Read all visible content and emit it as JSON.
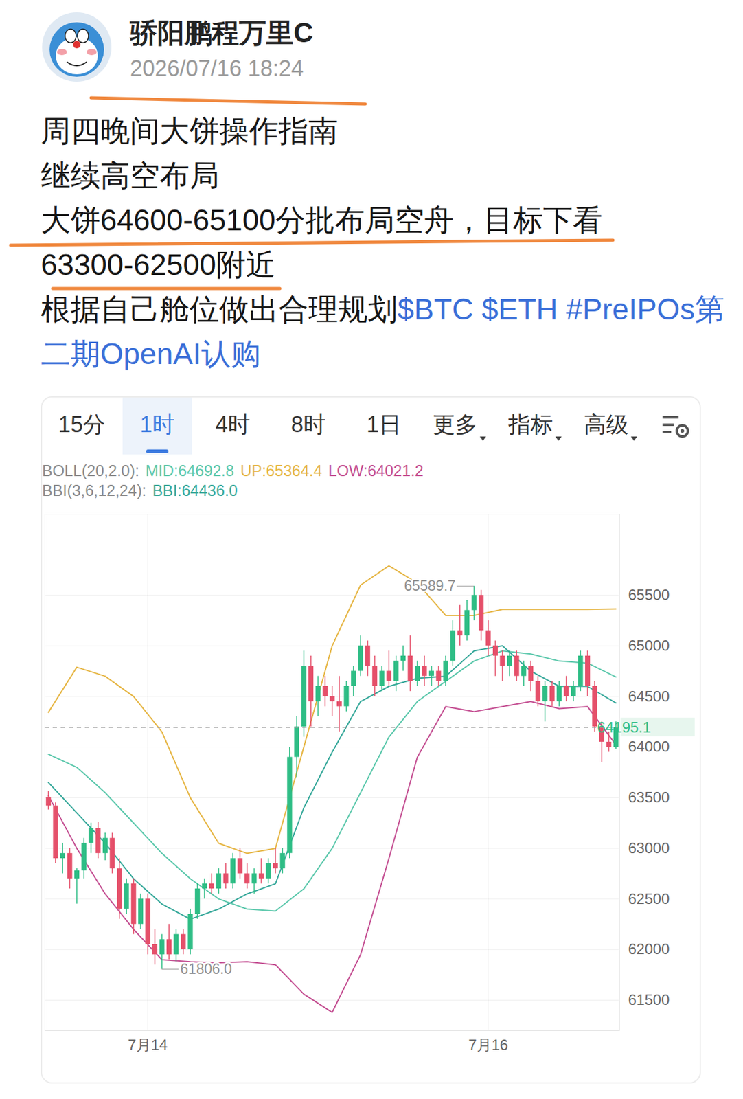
{
  "post": {
    "author": "骄阳鹏程万里C",
    "time": "2026/07/16 18:24",
    "body_lines": [
      "周四晚间大饼操作指南",
      "继续高空布局",
      "大饼64600-65100分批布局空舟，目标下看",
      "63300-62500附近"
    ],
    "body_last": {
      "text": "根据自己舱位做出合理规划",
      "tags": "$BTC $ETH #PreIPOs第二期OpenAI认购"
    }
  },
  "toolbar": {
    "tabs": [
      "15分",
      "1时",
      "4时",
      "8时",
      "1日",
      "更多",
      "指标",
      "高级"
    ],
    "selected": "1时"
  },
  "chart_data": {
    "type": "candlestick",
    "categories": [
      null,
      null,
      null,
      null,
      null,
      null,
      null,
      null,
      null,
      null,
      null,
      null,
      null,
      null,
      "7月14",
      null,
      null,
      null,
      null,
      null,
      null,
      null,
      null,
      null,
      null,
      null,
      null,
      null,
      null,
      null,
      null,
      null,
      null,
      null,
      null,
      null,
      null,
      null,
      null,
      null,
      null,
      null,
      null,
      null,
      null,
      null,
      null,
      null,
      null,
      null,
      null,
      null,
      null,
      null,
      null,
      null,
      null,
      null,
      null,
      null,
      null,
      null,
      "7月16",
      null,
      null,
      null,
      null,
      null,
      null,
      null,
      null,
      null,
      null,
      null,
      null,
      null,
      null,
      null,
      null,
      null,
      null
    ],
    "open": [
      63500,
      63420,
      62900,
      62950,
      62700,
      62780,
      63050,
      63200,
      62950,
      63100,
      62800,
      62400,
      62650,
      62250,
      62500,
      62050,
      61950,
      62100,
      61950,
      62150,
      62000,
      62350,
      62600,
      62650,
      62600,
      62750,
      62650,
      62900,
      62750,
      62650,
      62750,
      62700,
      62850,
      62800,
      62950,
      63900,
      64200,
      64800,
      64450,
      64600,
      64500,
      64450,
      64400,
      64600,
      64750,
      65000,
      64800,
      64600,
      64750,
      64650,
      64850,
      64900,
      64650,
      64800,
      64700,
      64750,
      64650,
      64850,
      65150,
      65100,
      65350,
      65500,
      65150,
      65000,
      64900,
      64800,
      64900,
      64700,
      64800,
      64650,
      64450,
      64600,
      64450,
      64600,
      64500,
      64600,
      64900,
      64600,
      64200,
      64050,
      64000
    ],
    "high": [
      63560,
      63450,
      63050,
      63000,
      62800,
      63100,
      63250,
      63260,
      63150,
      63150,
      62900,
      62700,
      62700,
      62550,
      62550,
      62200,
      62150,
      62250,
      62200,
      62200,
      62400,
      62650,
      62700,
      62750,
      62800,
      62850,
      62950,
      63000,
      62850,
      62800,
      62900,
      62900,
      63000,
      63000,
      64000,
      64300,
      64950,
      64900,
      64700,
      64700,
      64600,
      64700,
      64650,
      64800,
      65100,
      65050,
      64900,
      64800,
      64950,
      64900,
      65000,
      65100,
      64850,
      64900,
      64800,
      64800,
      64900,
      65250,
      65400,
      65450,
      65589.7,
      65550,
      65250,
      65050,
      64950,
      64950,
      64950,
      64850,
      64850,
      64700,
      64650,
      64650,
      64650,
      64700,
      64650,
      64950,
      64950,
      64650,
      64250,
      64150,
      64250
    ],
    "low": [
      63380,
      62850,
      62750,
      62600,
      62450,
      62700,
      62950,
      62900,
      62880,
      62750,
      62300,
      62350,
      62150,
      62200,
      61950,
      61850,
      61806,
      61900,
      61880,
      61950,
      61950,
      62300,
      62500,
      62550,
      62550,
      62600,
      62600,
      62700,
      62600,
      62550,
      62650,
      62650,
      62750,
      62750,
      62900,
      63700,
      64100,
      64200,
      64300,
      64400,
      64300,
      64150,
      64350,
      64500,
      64700,
      64700,
      64500,
      64550,
      64600,
      64550,
      64750,
      64550,
      64600,
      64600,
      64600,
      64600,
      64600,
      64800,
      65000,
      65050,
      65250,
      65050,
      64900,
      64700,
      64650,
      64700,
      64650,
      64600,
      64550,
      64400,
      64250,
      64400,
      64400,
      64450,
      64450,
      64550,
      64500,
      64150,
      63850,
      63950,
      63980
    ],
    "close": [
      63420,
      62900,
      62950,
      62700,
      62780,
      63050,
      63200,
      62950,
      63100,
      62800,
      62400,
      62650,
      62250,
      62500,
      62050,
      61950,
      62100,
      61950,
      62150,
      62000,
      62350,
      62600,
      62650,
      62600,
      62750,
      62650,
      62900,
      62750,
      62650,
      62750,
      62700,
      62850,
      62800,
      62950,
      63900,
      64200,
      64800,
      64450,
      64600,
      64500,
      64450,
      64400,
      64600,
      64750,
      65000,
      64800,
      64600,
      64750,
      64650,
      64850,
      64900,
      64650,
      64800,
      64700,
      64750,
      64650,
      64850,
      65150,
      65100,
      65350,
      65500,
      65150,
      65000,
      64900,
      64800,
      64900,
      64700,
      64800,
      64650,
      64450,
      64600,
      64450,
      64600,
      64500,
      64600,
      64900,
      64600,
      64200,
      64050,
      64000,
      64195.1
    ],
    "ylim": [
      61200,
      66300
    ],
    "yticks": [
      61500,
      62000,
      62500,
      63000,
      63500,
      64000,
      64500,
      65000,
      65500
    ],
    "grid": true,
    "last_price": 64195.1,
    "high_mark": 65589.7,
    "low_mark": {
      "value": 61806,
      "label": "61806.0"
    },
    "indicators": [
      {
        "label": "BOLL(20,2.0):",
        "lines": [
          {
            "name": "MID",
            "type": "line",
            "color": "#5cc8ac",
            "value_label": "MID:64692.8",
            "x": [
              0,
              4,
              8,
              12,
              16,
              20,
              24,
              28,
              32,
              36,
              40,
              44,
              48,
              52,
              56,
              60,
              64,
              68,
              72,
              76,
              80
            ],
            "values": [
              63930,
              63800,
              63550,
              63250,
              62950,
              62700,
              62500,
              62400,
              62380,
              62600,
              63000,
              63550,
              64100,
              64450,
              64650,
              64850,
              64950,
              64920,
              64850,
              64830,
              64692.8
            ]
          },
          {
            "name": "UP",
            "type": "line",
            "color": "#e6b645",
            "value_label": "UP:65364.4",
            "x": [
              0,
              4,
              8,
              12,
              16,
              20,
              24,
              28,
              32,
              36,
              40,
              44,
              48,
              52,
              56,
              60,
              64,
              68,
              72,
              76,
              80
            ],
            "values": [
              64344,
              64789,
              64700,
              64500,
              64150,
              63500,
              63050,
              62950,
              63000,
              64000,
              65000,
              65600,
              65790,
              65620,
              65300,
              65300,
              65360,
              65360,
              65360,
              65360,
              65364.4
            ]
          },
          {
            "name": "LOW",
            "type": "line",
            "color": "#c44f92",
            "value_label": "LOW:64021.2",
            "x": [
              0,
              4,
              8,
              12,
              16,
              20,
              24,
              28,
              32,
              36,
              40,
              44,
              48,
              52,
              56,
              60,
              64,
              68,
              72,
              76,
              80
            ],
            "values": [
              63520,
              63000,
              62550,
              62200,
              61900,
              61880,
              61870,
              61880,
              61850,
              61560,
              61380,
              61950,
              62900,
              63900,
              64400,
              64350,
              64400,
              64450,
              64380,
              64400,
              64021.2
            ]
          }
        ]
      },
      {
        "label": "BBI(3,6,12,24):",
        "lines": [
          {
            "name": "BBI",
            "type": "line",
            "color": "#36a89a",
            "value_label": "BBI:64436.0",
            "x": [
              0,
              4,
              8,
              12,
              16,
              20,
              24,
              28,
              32,
              36,
              40,
              44,
              48,
              52,
              56,
              60,
              64,
              68,
              72,
              76,
              80
            ],
            "values": [
              63650,
              63350,
              63050,
              62700,
              62450,
              62300,
              62400,
              62550,
              62650,
              63400,
              63950,
              64450,
              64600,
              64680,
              64700,
              64950,
              65000,
              64750,
              64600,
              64600,
              64436
            ]
          }
        ]
      }
    ]
  }
}
